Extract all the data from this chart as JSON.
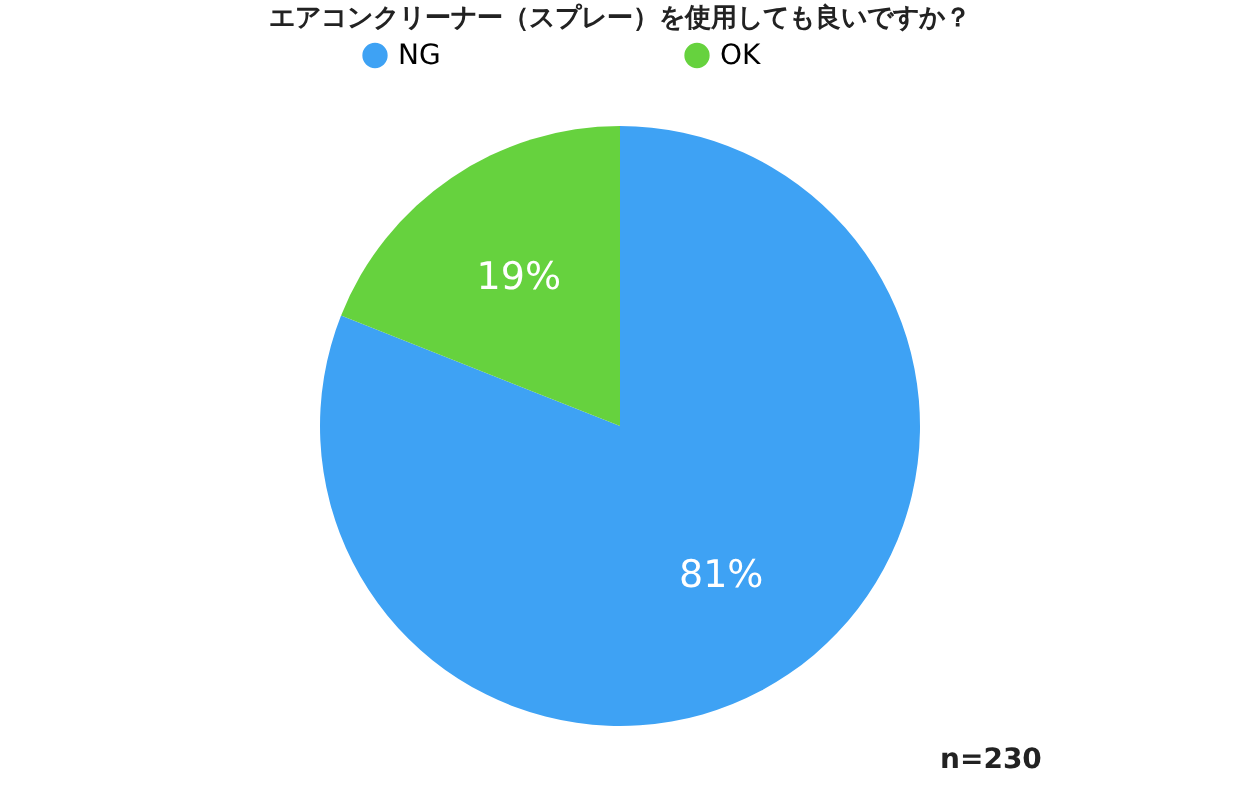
{
  "chart_data": {
    "type": "pie",
    "title": "エアコンクリーナー（スプレー）を使用しても良いですか？",
    "categories": [
      "NG",
      "OK"
    ],
    "values": [
      81,
      19
    ],
    "colors": [
      "#3ea2f4",
      "#66d23e"
    ],
    "value_labels": [
      "81%",
      "19%"
    ],
    "legend": "top",
    "annotations": [
      "n=230"
    ]
  }
}
